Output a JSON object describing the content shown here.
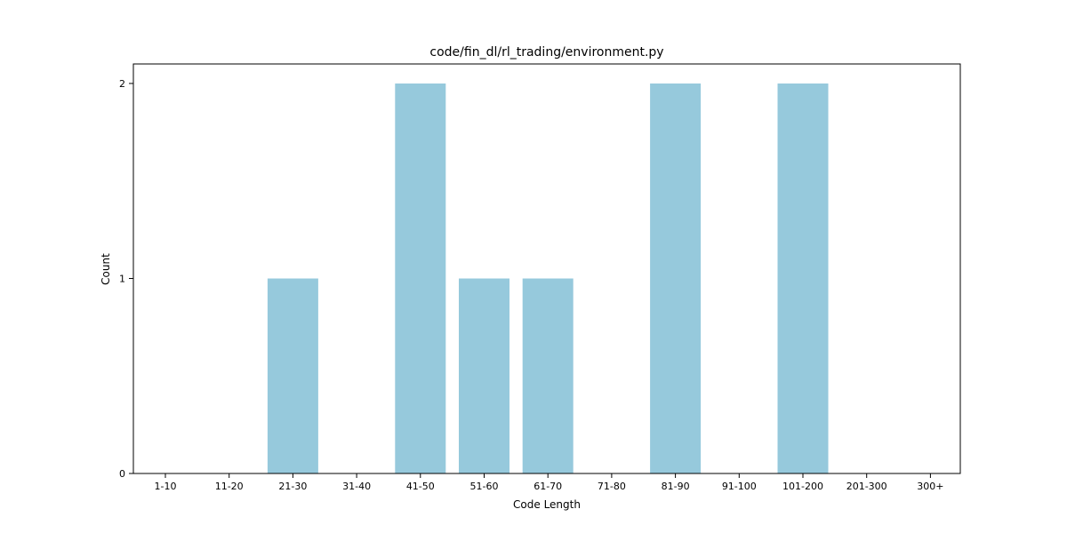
{
  "chart_data": {
    "type": "bar",
    "title": "code/fin_dl/rl_trading/environment.py",
    "xlabel": "Code Length",
    "ylabel": "Count",
    "categories": [
      "1-10",
      "11-20",
      "21-30",
      "31-40",
      "41-50",
      "51-60",
      "61-70",
      "71-80",
      "81-90",
      "91-100",
      "101-200",
      "201-300",
      "300+"
    ],
    "values": [
      0,
      0,
      1,
      0,
      2,
      1,
      1,
      0,
      2,
      0,
      2,
      0,
      0
    ],
    "yticks": [
      "0",
      "1",
      "2"
    ],
    "ylim": [
      0,
      2.1
    ],
    "bar_color": "#96c9dc",
    "grid": false,
    "legend": "none"
  }
}
